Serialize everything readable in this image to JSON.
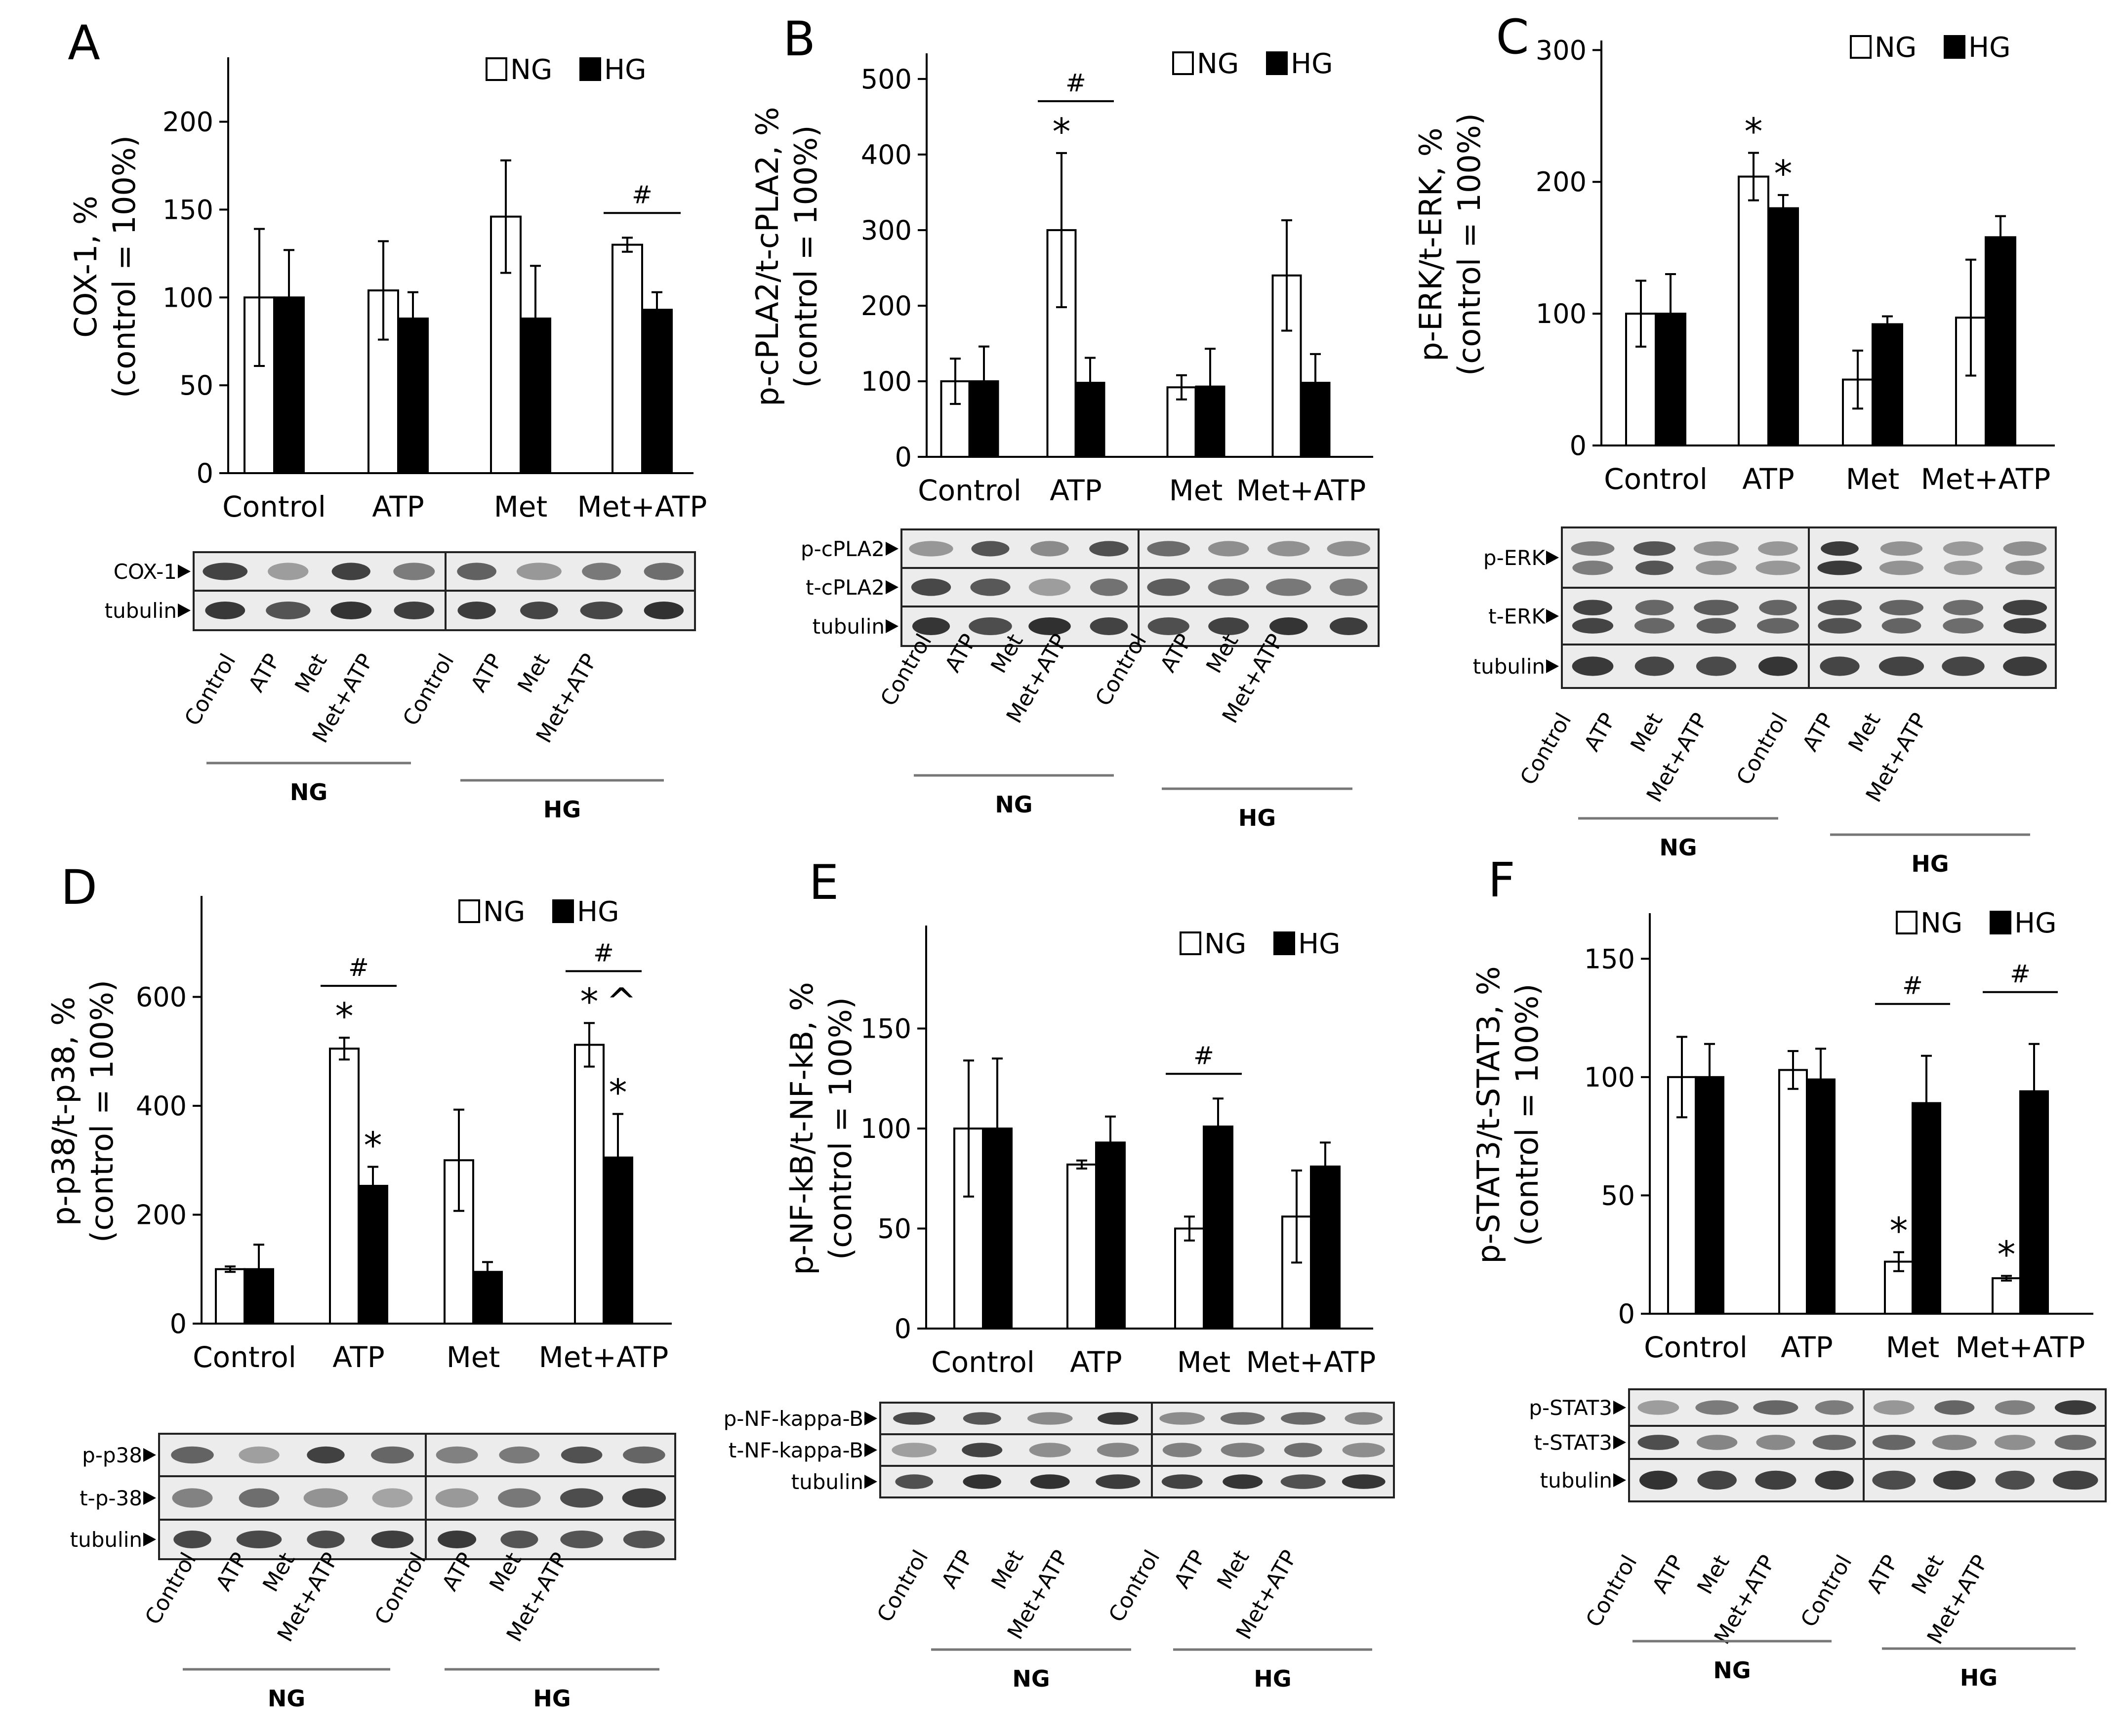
{
  "figure": {
    "legend": {
      "ng": "NG",
      "hg": "HG"
    },
    "categories": [
      "Control",
      "ATP",
      "Met",
      "Met+ATP"
    ],
    "lane_labels": [
      "Control",
      "ATP",
      "Met",
      "Met+ATP"
    ],
    "group_labels": [
      "NG",
      "HG"
    ]
  },
  "chart_data": [
    {
      "panel": "A",
      "type": "bar",
      "ylabel": [
        "COX-1, %",
        "(control = 100%)"
      ],
      "categories": [
        "Control",
        "ATP",
        "Met",
        "Met+ATP"
      ],
      "series": [
        {
          "name": "NG",
          "values": [
            100,
            104,
            146,
            130
          ],
          "errors": [
            39,
            28,
            32,
            4
          ]
        },
        {
          "name": "HG",
          "values": [
            100,
            88,
            88,
            93
          ],
          "errors": [
            27,
            15,
            30,
            10
          ]
        }
      ],
      "yticks": [
        0,
        50,
        100,
        150,
        200
      ],
      "ylim": [
        0,
        235
      ],
      "annotations": [
        {
          "category": 3,
          "text": "#",
          "type": "bracket"
        }
      ],
      "blots": [
        {
          "label": "COX-1"
        },
        {
          "label": "tubulin"
        }
      ]
    },
    {
      "panel": "B",
      "type": "bar",
      "ylabel": [
        "p-cPLA2/t-cPLA2, %",
        "(control = 100%)"
      ],
      "categories": [
        "Control",
        "ATP",
        "Met",
        "Met+ATP"
      ],
      "series": [
        {
          "name": "NG",
          "values": [
            100,
            300,
            92,
            240
          ],
          "errors": [
            30,
            102,
            16,
            73
          ]
        },
        {
          "name": "HG",
          "values": [
            100,
            98,
            93,
            98
          ],
          "errors": [
            46,
            33,
            50,
            38
          ]
        }
      ],
      "yticks": [
        0,
        100,
        200,
        300,
        400,
        500
      ],
      "ylim": [
        0,
        530
      ],
      "annotations": [
        {
          "category": 1,
          "text": "#",
          "type": "bracket"
        },
        {
          "category": 1,
          "series": 0,
          "text": "*"
        }
      ],
      "blots": [
        {
          "label": "p-cPLA2"
        },
        {
          "label": "t-cPLA2"
        },
        {
          "label": "tubulin"
        }
      ]
    },
    {
      "panel": "C",
      "type": "bar",
      "ylabel": [
        "p-ERK/t-ERK, %",
        "(control = 100%)"
      ],
      "categories": [
        "Control",
        "ATP",
        "Met",
        "Met+ATP"
      ],
      "series": [
        {
          "name": "NG",
          "values": [
            100,
            204,
            50,
            97
          ],
          "errors": [
            25,
            18,
            22,
            44
          ]
        },
        {
          "name": "HG",
          "values": [
            100,
            180,
            92,
            158
          ],
          "errors": [
            30,
            10,
            6,
            16
          ]
        }
      ],
      "yticks": [
        0,
        100,
        200,
        300
      ],
      "ylim": [
        0,
        305
      ],
      "annotations": [
        {
          "category": 1,
          "series": 0,
          "text": "*"
        },
        {
          "category": 1,
          "series": 1,
          "text": "*"
        }
      ],
      "blots": [
        {
          "label": "p-ERK"
        },
        {
          "label": "t-ERK"
        },
        {
          "label": "tubulin"
        }
      ]
    },
    {
      "panel": "D",
      "type": "bar",
      "ylabel": [
        "p-p38/t-p38, %",
        "(control = 100%)"
      ],
      "categories": [
        "Control",
        "ATP",
        "Met",
        "Met+ATP"
      ],
      "series": [
        {
          "name": "NG",
          "values": [
            100,
            505,
            300,
            512
          ],
          "errors": [
            5,
            20,
            93,
            40
          ]
        },
        {
          "name": "HG",
          "values": [
            100,
            253,
            95,
            305
          ],
          "errors": [
            45,
            35,
            18,
            80
          ]
        }
      ],
      "yticks": [
        0,
        200,
        400,
        600
      ],
      "ylim": [
        0,
        780
      ],
      "annotations": [
        {
          "category": 1,
          "text": "#",
          "type": "bracket"
        },
        {
          "category": 1,
          "series": 0,
          "text": "*"
        },
        {
          "category": 1,
          "series": 1,
          "text": "*"
        },
        {
          "category": 3,
          "text": "#",
          "type": "bracket"
        },
        {
          "category": 3,
          "series": 0,
          "text": "*"
        },
        {
          "category": 3,
          "series": 0,
          "text": "^"
        },
        {
          "category": 3,
          "series": 1,
          "text": "*"
        }
      ],
      "blots": [
        {
          "label": "p-p38"
        },
        {
          "label": "t-p-38"
        },
        {
          "label": "tubulin"
        }
      ]
    },
    {
      "panel": "E",
      "type": "bar",
      "ylabel": [
        "p-NF-kB/t-NF-kB, %",
        "(control = 100%)"
      ],
      "categories": [
        "Control",
        "ATP",
        "Met",
        "Met+ATP"
      ],
      "series": [
        {
          "name": "NG",
          "values": [
            100,
            82,
            50,
            56
          ],
          "errors": [
            34,
            2,
            6,
            23
          ]
        },
        {
          "name": "HG",
          "values": [
            100,
            93,
            101,
            81
          ],
          "errors": [
            35,
            13,
            14,
            12
          ]
        }
      ],
      "yticks": [
        0,
        50,
        100,
        150
      ],
      "ylim": [
        0,
        200
      ],
      "annotations": [
        {
          "category": 2,
          "text": "#",
          "type": "bracket"
        }
      ],
      "blots": [
        {
          "label": "p-NF-kappa-B"
        },
        {
          "label": "t-NF-kappa-B"
        },
        {
          "label": "tubulin"
        }
      ]
    },
    {
      "panel": "F",
      "type": "bar",
      "ylabel": [
        "p-STAT3/t-STAT3, %",
        "(control = 100%)"
      ],
      "categories": [
        "Control",
        "ATP",
        "Met",
        "Met+ATP"
      ],
      "series": [
        {
          "name": "NG",
          "values": [
            100,
            103,
            22,
            15
          ],
          "errors": [
            17,
            8,
            4,
            1
          ]
        },
        {
          "name": "HG",
          "values": [
            100,
            99,
            89,
            94
          ],
          "errors": [
            14,
            13,
            20,
            20
          ]
        }
      ],
      "yticks": [
        0,
        50,
        100,
        150
      ],
      "ylim": [
        0,
        168
      ],
      "annotations": [
        {
          "category": 2,
          "text": "#",
          "type": "bracket"
        },
        {
          "category": 2,
          "series": 0,
          "text": "*"
        },
        {
          "category": 3,
          "text": "#",
          "type": "bracket"
        },
        {
          "category": 3,
          "series": 0,
          "text": "*"
        }
      ],
      "blots": [
        {
          "label": "p-STAT3"
        },
        {
          "label": "t-STAT3"
        },
        {
          "label": "tubulin"
        }
      ]
    }
  ]
}
